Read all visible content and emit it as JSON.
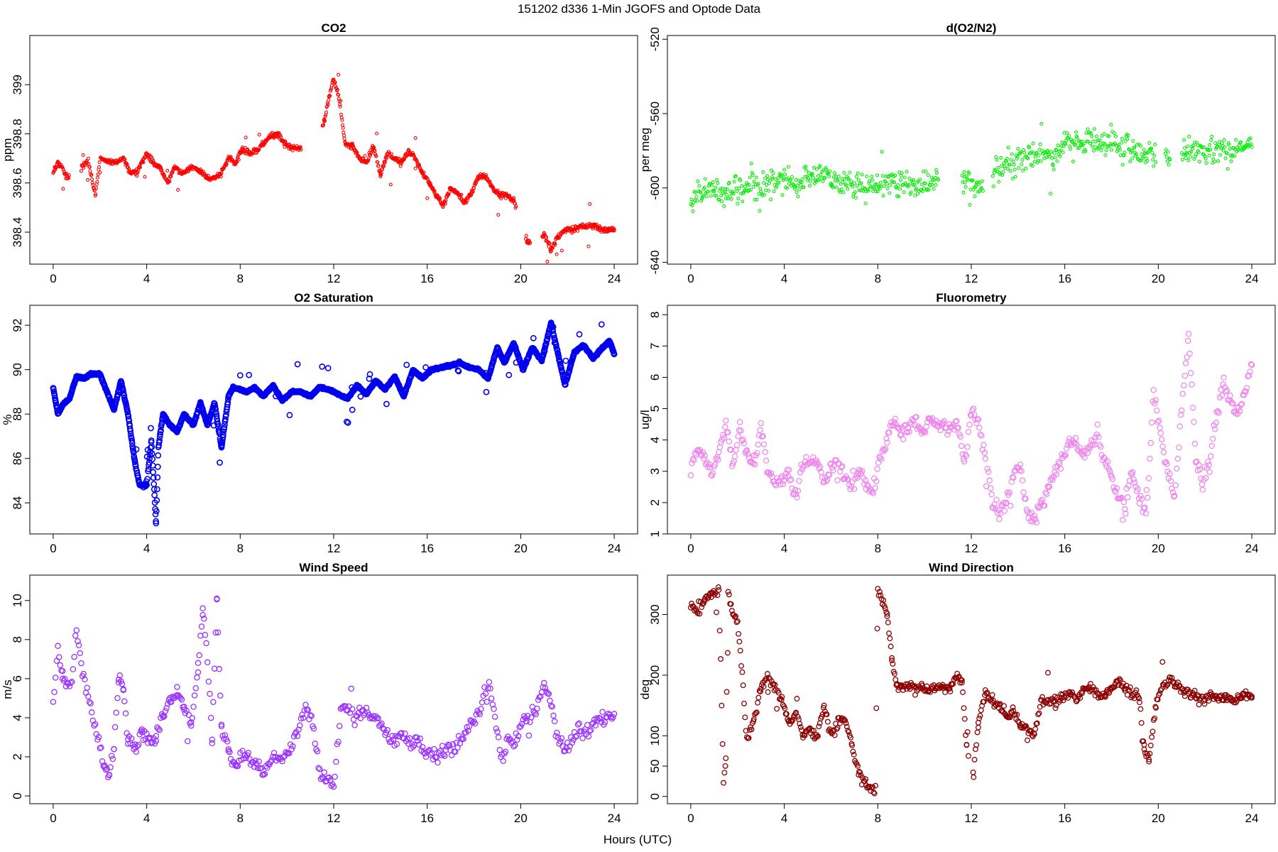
{
  "figure": {
    "suptitle": "151202   d336   1-Min  JGOFS and Optode Data",
    "xlabel": "Hours (UTC)"
  },
  "chart_data": [
    {
      "type": "scatter",
      "title": "CO2",
      "ylabel": "ppm",
      "color": "#ff0000",
      "xlim": [
        -1,
        25
      ],
      "ylim": [
        398.27,
        399.2
      ],
      "xticks": [
        0,
        4,
        8,
        12,
        16,
        20,
        24
      ],
      "yticks": [
        398.4,
        398.6,
        398.8,
        399.0
      ],
      "gaps": [
        [
          0.7,
          1.2
        ],
        [
          6.0,
          6.05
        ],
        [
          10.6,
          11.5
        ],
        [
          19.8,
          20.2
        ],
        [
          20.4,
          20.9
        ]
      ],
      "x": [
        0,
        0.2,
        0.4,
        0.6,
        1.2,
        1.5,
        1.8,
        2.0,
        2.3,
        2.6,
        3.0,
        3.3,
        3.6,
        4.0,
        4.3,
        4.6,
        4.9,
        5.2,
        5.5,
        5.9,
        6.3,
        6.6,
        6.9,
        7.2,
        7.5,
        7.8,
        8.1,
        8.4,
        8.7,
        9.0,
        9.3,
        9.6,
        9.9,
        10.2,
        10.5,
        11.6,
        11.8,
        12.0,
        12.2,
        12.5,
        12.8,
        13.1,
        13.4,
        13.7,
        14.0,
        14.3,
        14.6,
        14.9,
        15.2,
        15.5,
        15.8,
        16.1,
        16.4,
        16.7,
        17.0,
        17.3,
        17.6,
        17.9,
        18.2,
        18.5,
        18.8,
        19.1,
        19.4,
        19.7,
        20.3,
        21.0,
        21.3,
        21.6,
        21.9,
        22.2,
        22.5,
        22.8,
        23.1,
        23.4,
        23.7,
        24.0
      ],
      "y": [
        398.65,
        398.68,
        398.66,
        398.62,
        398.66,
        398.69,
        398.55,
        398.7,
        398.69,
        398.68,
        398.7,
        398.64,
        398.65,
        398.72,
        398.68,
        398.66,
        398.6,
        398.67,
        398.64,
        398.66,
        398.65,
        398.62,
        398.62,
        398.64,
        398.7,
        398.68,
        398.74,
        398.72,
        398.73,
        398.76,
        398.79,
        398.8,
        398.76,
        398.74,
        398.74,
        398.85,
        398.95,
        399.02,
        398.96,
        398.76,
        398.75,
        398.7,
        398.68,
        398.75,
        398.63,
        398.72,
        398.7,
        398.68,
        398.73,
        398.7,
        398.64,
        398.6,
        398.55,
        398.51,
        398.58,
        398.56,
        398.52,
        398.56,
        398.62,
        398.63,
        398.58,
        398.55,
        398.55,
        398.53,
        398.36,
        398.39,
        398.33,
        398.38,
        398.41,
        398.41,
        398.42,
        398.42,
        398.43,
        398.41,
        398.41,
        398.41
      ]
    },
    {
      "type": "scatter",
      "title": "d(O2/N2)",
      "ylabel": "per meg",
      "color": "#00ee00",
      "xlim": [
        -1,
        25
      ],
      "ylim": [
        -641,
        -518
      ],
      "xticks": [
        0,
        4,
        8,
        12,
        16,
        20,
        24
      ],
      "yticks": [
        -520,
        -560,
        -600,
        -640
      ],
      "gaps": [
        [
          10.6,
          11.6
        ],
        [
          12.5,
          12.9
        ],
        [
          19.9,
          20.3
        ],
        [
          20.5,
          21.0
        ]
      ],
      "x": [
        0,
        0.5,
        1.0,
        1.5,
        2.0,
        2.5,
        3.0,
        3.5,
        4.0,
        4.5,
        5.0,
        5.5,
        6.0,
        6.5,
        7.0,
        7.5,
        8.0,
        8.5,
        9.0,
        9.5,
        10.0,
        10.5,
        11.7,
        12.2,
        13.0,
        13.5,
        14.0,
        14.5,
        15.0,
        15.5,
        16.0,
        16.5,
        17.0,
        17.5,
        18.0,
        18.5,
        19.0,
        19.5,
        20.0,
        20.5,
        21.2,
        21.7,
        22.2,
        22.7,
        23.2,
        23.7,
        24.0
      ],
      "y": [
        -604,
        -602,
        -601,
        -603,
        -601,
        -599,
        -600,
        -598,
        -594,
        -598,
        -595,
        -592,
        -595,
        -598,
        -597,
        -600,
        -597,
        -598,
        -596,
        -600,
        -598,
        -597,
        -596,
        -598,
        -592,
        -590,
        -586,
        -583,
        -581,
        -583,
        -576,
        -575,
        -577,
        -576,
        -574,
        -578,
        -580,
        -582,
        -583,
        -584,
        -580,
        -579,
        -581,
        -578,
        -580,
        -579,
        -578
      ]
    },
    {
      "type": "scatter",
      "title": "O2 Saturation",
      "ylabel": "%",
      "color": "#0000ee",
      "xlim": [
        -1,
        25
      ],
      "ylim": [
        82.6,
        92.9
      ],
      "xticks": [
        0,
        4,
        8,
        12,
        16,
        20,
        24
      ],
      "yticks": [
        84,
        86,
        88,
        90,
        92
      ],
      "x": [
        0,
        0.1,
        0.2,
        0.4,
        0.7,
        1.0,
        1.3,
        1.6,
        2.0,
        2.3,
        2.6,
        2.9,
        3.2,
        3.5,
        3.7,
        4.0,
        4.2,
        4.4,
        4.5,
        4.7,
        5.0,
        5.3,
        5.6,
        6.0,
        6.3,
        6.6,
        6.9,
        7.2,
        7.5,
        7.7,
        8.0,
        8.3,
        8.6,
        9.0,
        9.4,
        9.8,
        10.2,
        10.6,
        11.0,
        11.4,
        11.8,
        12.2,
        12.6,
        13.0,
        13.4,
        13.8,
        14.2,
        14.6,
        15.0,
        15.4,
        15.8,
        16.2,
        16.6,
        17.0,
        17.4,
        17.8,
        18.2,
        18.6,
        19.0,
        19.3,
        19.7,
        20.1,
        20.5,
        20.9,
        21.3,
        21.6,
        21.9,
        22.3,
        22.7,
        23.1,
        23.5,
        23.8,
        24.0
      ],
      "y": [
        89.2,
        88.6,
        88,
        88.4,
        88.7,
        89.7,
        89.6,
        89.8,
        89.8,
        89,
        88.2,
        89.5,
        88,
        85.8,
        84.8,
        84.8,
        86.8,
        83.1,
        86.5,
        88,
        87.5,
        87.2,
        88,
        87.5,
        88.5,
        87.5,
        88.5,
        86.5,
        88.8,
        89.2,
        89.1,
        89.0,
        89.2,
        88.8,
        89.3,
        88.6,
        89.0,
        89.0,
        88.8,
        89.2,
        89.1,
        88.9,
        88.7,
        89.3,
        88.9,
        89.5,
        89.1,
        89.7,
        88.8,
        90.0,
        89.6,
        90.0,
        90.1,
        90.2,
        90.3,
        90.1,
        90.0,
        89.6,
        91.0,
        90.3,
        91.2,
        90.0,
        91.0,
        90.4,
        92.1,
        90.7,
        89.3,
        90.8,
        91.1,
        90.5,
        91.0,
        91.3,
        90.7
      ]
    },
    {
      "type": "scatter",
      "title": "Fluorometry",
      "ylabel": "ug/l",
      "color": "#ee82ee",
      "xlim": [
        -1,
        25
      ],
      "ylim": [
        1,
        8.3
      ],
      "xticks": [
        0,
        4,
        8,
        12,
        16,
        20,
        24
      ],
      "yticks": [
        1,
        2,
        3,
        4,
        5,
        6,
        7,
        8
      ],
      "x": [
        0,
        0.3,
        0.6,
        0.9,
        1.2,
        1.5,
        1.8,
        2.1,
        2.4,
        2.7,
        3.0,
        3.3,
        3.6,
        3.9,
        4.2,
        4.5,
        4.8,
        5.1,
        5.4,
        5.7,
        6.0,
        6.3,
        6.6,
        6.9,
        7.2,
        7.5,
        7.8,
        8.1,
        8.4,
        8.7,
        9.0,
        9.3,
        9.6,
        9.9,
        10.2,
        10.5,
        10.8,
        11.1,
        11.4,
        11.7,
        12.0,
        12.3,
        12.6,
        12.9,
        13.2,
        13.5,
        13.8,
        14.1,
        14.4,
        14.7,
        15.0,
        15.3,
        15.6,
        15.9,
        16.2,
        16.5,
        16.8,
        17.1,
        17.4,
        17.7,
        18.0,
        18.3,
        18.6,
        18.9,
        19.2,
        19.5,
        19.8,
        20.1,
        20.4,
        20.7,
        21.0,
        21.3,
        21.6,
        21.9,
        22.2,
        22.5,
        22.8,
        23.1,
        23.4,
        23.7,
        24.0
      ],
      "y": [
        3.0,
        3.8,
        3.3,
        3.0,
        3.5,
        4.5,
        3.2,
        4.3,
        3.6,
        3.0,
        4.6,
        3.0,
        2.6,
        2.8,
        2.9,
        2.2,
        3.2,
        3.4,
        3.3,
        2.7,
        3.1,
        3.3,
        2.8,
        2.5,
        3.0,
        2.6,
        2.3,
        3.5,
        4.0,
        4.6,
        4.2,
        4.4,
        4.5,
        4.2,
        4.6,
        4.4,
        4.5,
        4.4,
        4.6,
        3.2,
        5.0,
        4.5,
        3.5,
        2.0,
        1.7,
        2.1,
        2.8,
        3.2,
        1.6,
        1.5,
        1.9,
        2.4,
        3.0,
        3.4,
        4.0,
        3.8,
        3.5,
        3.9,
        4.2,
        3.4,
        2.8,
        2.2,
        1.9,
        3.0,
        2.1,
        1.6,
        5.5,
        4.2,
        3.0,
        2.2,
        5.0,
        7.4,
        3.5,
        2.5,
        3.2,
        4.8,
        5.8,
        5.2,
        4.9,
        5.6,
        6.4
      ]
    },
    {
      "type": "scatter",
      "title": "Wind Speed",
      "ylabel": "m/s",
      "color": "#9b30ff",
      "xlim": [
        -1,
        25
      ],
      "ylim": [
        -0.4,
        11.3
      ],
      "xticks": [
        0,
        4,
        8,
        12,
        16,
        20,
        24
      ],
      "yticks": [
        0,
        2,
        4,
        6,
        8,
        10
      ],
      "x": [
        0,
        0.2,
        0.4,
        0.6,
        0.8,
        1.0,
        1.2,
        1.5,
        1.8,
        2.0,
        2.2,
        2.4,
        2.6,
        2.8,
        3.0,
        3.2,
        3.5,
        3.8,
        4.1,
        4.4,
        4.7,
        5.0,
        5.3,
        5.6,
        5.9,
        6.2,
        6.4,
        6.6,
        6.8,
        7.0,
        7.2,
        7.5,
        7.8,
        8.1,
        8.4,
        8.7,
        9.0,
        9.3,
        9.6,
        9.9,
        10.2,
        10.5,
        10.8,
        11.1,
        11.4,
        11.7,
        12.0,
        12.3,
        12.6,
        12.9,
        13.2,
        13.5,
        13.8,
        14.1,
        14.4,
        14.7,
        15.0,
        15.3,
        15.6,
        15.9,
        16.2,
        16.5,
        16.8,
        17.1,
        17.4,
        17.7,
        18.0,
        18.3,
        18.6,
        18.9,
        19.2,
        19.5,
        19.8,
        20.1,
        20.4,
        20.7,
        21.0,
        21.3,
        21.6,
        21.9,
        22.2,
        22.5,
        22.8,
        23.1,
        23.4,
        23.7,
        24.0
      ],
      "y": [
        5.0,
        7.5,
        6.0,
        5.5,
        6.0,
        8.8,
        6.5,
        5.2,
        3.5,
        2.5,
        1.5,
        1.0,
        2.5,
        6.0,
        5.5,
        2.8,
        2.5,
        3.2,
        2.8,
        3.0,
        4.0,
        4.8,
        5.2,
        4.5,
        3.5,
        6.5,
        9.5,
        7.0,
        3.0,
        10.2,
        3.5,
        2.5,
        1.5,
        2.2,
        1.8,
        1.6,
        1.2,
        1.8,
        2.0,
        2.2,
        2.5,
        3.5,
        4.5,
        3.5,
        1.2,
        0.8,
        0.6,
        4.5,
        4.3,
        4.0,
        4.5,
        4.2,
        3.8,
        3.5,
        3.0,
        2.8,
        3.2,
        2.5,
        2.8,
        2.2,
        2.2,
        2.0,
        2.4,
        2.5,
        2.8,
        3.2,
        4.0,
        4.5,
        5.8,
        4.0,
        1.8,
        3.0,
        2.8,
        4.0,
        4.2,
        4.5,
        5.8,
        4.8,
        3.0,
        2.5,
        2.8,
        3.5,
        3.2,
        3.8,
        4.0,
        3.8,
        4.2
      ]
    },
    {
      "type": "scatter",
      "title": "Wind Direction",
      "ylabel": "deg",
      "color": "#8b0000",
      "xlim": [
        -1,
        25
      ],
      "ylim": [
        -12,
        365
      ],
      "xticks": [
        0,
        4,
        8,
        12,
        16,
        20,
        24
      ],
      "yticks": [
        0,
        50,
        100,
        200,
        300
      ],
      "gaps": [
        [
          11.9,
          12.05
        ]
      ],
      "x": [
        0,
        0.3,
        0.6,
        0.9,
        1.2,
        1.4,
        1.5,
        1.6,
        1.8,
        2.0,
        2.2,
        2.4,
        2.7,
        3.0,
        3.3,
        3.6,
        3.9,
        4.2,
        4.5,
        4.8,
        5.1,
        5.4,
        5.7,
        6.0,
        6.3,
        6.6,
        6.9,
        7.2,
        7.5,
        7.7,
        7.9,
        8.0,
        8.2,
        8.4,
        8.6,
        8.8,
        9.0,
        9.3,
        9.6,
        9.9,
        10.2,
        10.5,
        10.8,
        11.1,
        11.4,
        11.6,
        11.8,
        12.1,
        12.3,
        12.6,
        12.9,
        13.2,
        13.5,
        13.8,
        14.1,
        14.4,
        14.7,
        15.0,
        15.3,
        15.6,
        15.9,
        16.2,
        16.5,
        16.8,
        17.1,
        17.4,
        17.7,
        18.0,
        18.3,
        18.6,
        18.9,
        19.2,
        19.4,
        19.6,
        19.9,
        20.2,
        20.5,
        20.8,
        21.1,
        21.4,
        21.7,
        22.0,
        22.3,
        22.6,
        22.9,
        23.2,
        23.5,
        23.8,
        24.0
      ],
      "y": [
        315,
        305,
        325,
        335,
        340,
        20,
        60,
        340,
        300,
        290,
        200,
        90,
        130,
        180,
        195,
        180,
        160,
        120,
        140,
        100,
        110,
        100,
        150,
        100,
        120,
        130,
        80,
        40,
        20,
        10,
        15,
        340,
        320,
        300,
        230,
        185,
        180,
        185,
        175,
        180,
        175,
        180,
        178,
        180,
        200,
        190,
        80,
        40,
        120,
        170,
        160,
        150,
        130,
        140,
        120,
        110,
        100,
        160,
        155,
        160,
        165,
        170,
        160,
        175,
        180,
        170,
        165,
        180,
        190,
        180,
        170,
        160,
        80,
        60,
        150,
        185,
        195,
        180,
        175,
        170,
        165,
        160,
        165,
        160,
        165,
        160,
        165,
        170,
        165
      ]
    }
  ]
}
